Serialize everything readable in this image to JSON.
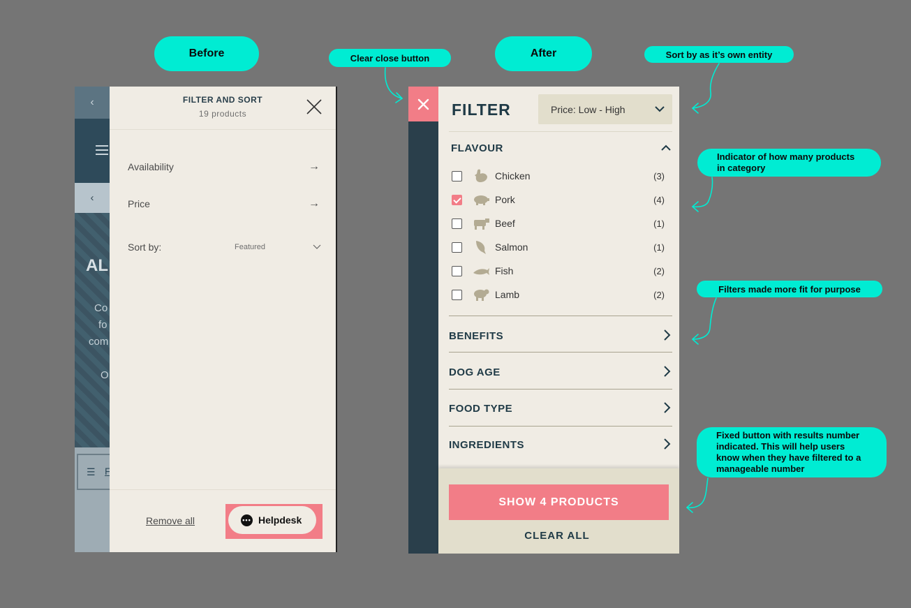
{
  "labels": {
    "before": "Before",
    "after": "After",
    "clear_close": "Clear close button",
    "sort_by": "Sort by as it’s own entity",
    "indicator": "Indicator of how many products in category",
    "filters_fit": "Filters made more fit for purpose",
    "fixed_button": "Fixed button with results number indicated. This will help users know when they have filtered to a manageable number"
  },
  "before": {
    "background": {
      "hero_title": "AL",
      "hero_text": [
        "Co",
        "fo",
        "com",
        "",
        "O"
      ],
      "filter_btn": "F"
    },
    "drawer": {
      "title": "FILTER AND SORT",
      "count": "19 products",
      "rows": [
        "Availability",
        "Price"
      ],
      "sort_label": "Sort by:",
      "sort_value": "Featured",
      "remove_all": "Remove all",
      "helpdesk": "Helpdesk"
    }
  },
  "after": {
    "title": "FILTER",
    "sort_value": "Price: Low - High",
    "flavour_title": "FLAVOUR",
    "options": [
      {
        "label": "Chicken",
        "count": "(3)",
        "checked": false,
        "icon": "chicken-icon"
      },
      {
        "label": "Pork",
        "count": "(4)",
        "checked": true,
        "icon": "pig-icon"
      },
      {
        "label": "Beef",
        "count": "(1)",
        "checked": false,
        "icon": "cow-icon"
      },
      {
        "label": "Salmon",
        "count": "(1)",
        "checked": false,
        "icon": "salmon-icon"
      },
      {
        "label": "Fish",
        "count": "(2)",
        "checked": false,
        "icon": "fish-icon"
      },
      {
        "label": "Lamb",
        "count": "(2)",
        "checked": false,
        "icon": "sheep-icon"
      }
    ],
    "sections": [
      "BENEFITS",
      "DOG AGE",
      "FOOD TYPE",
      "INGREDIENTS"
    ],
    "show_button": "SHOW 4 PRODUCTS",
    "clear_all": "CLEAR ALL"
  },
  "colors": {
    "canvas": "#757575",
    "annotation": "#00ecd3",
    "accent": "#f27d87",
    "navy": "#1f3a46",
    "cream": "#f0ece4",
    "sand": "#e2decc"
  }
}
